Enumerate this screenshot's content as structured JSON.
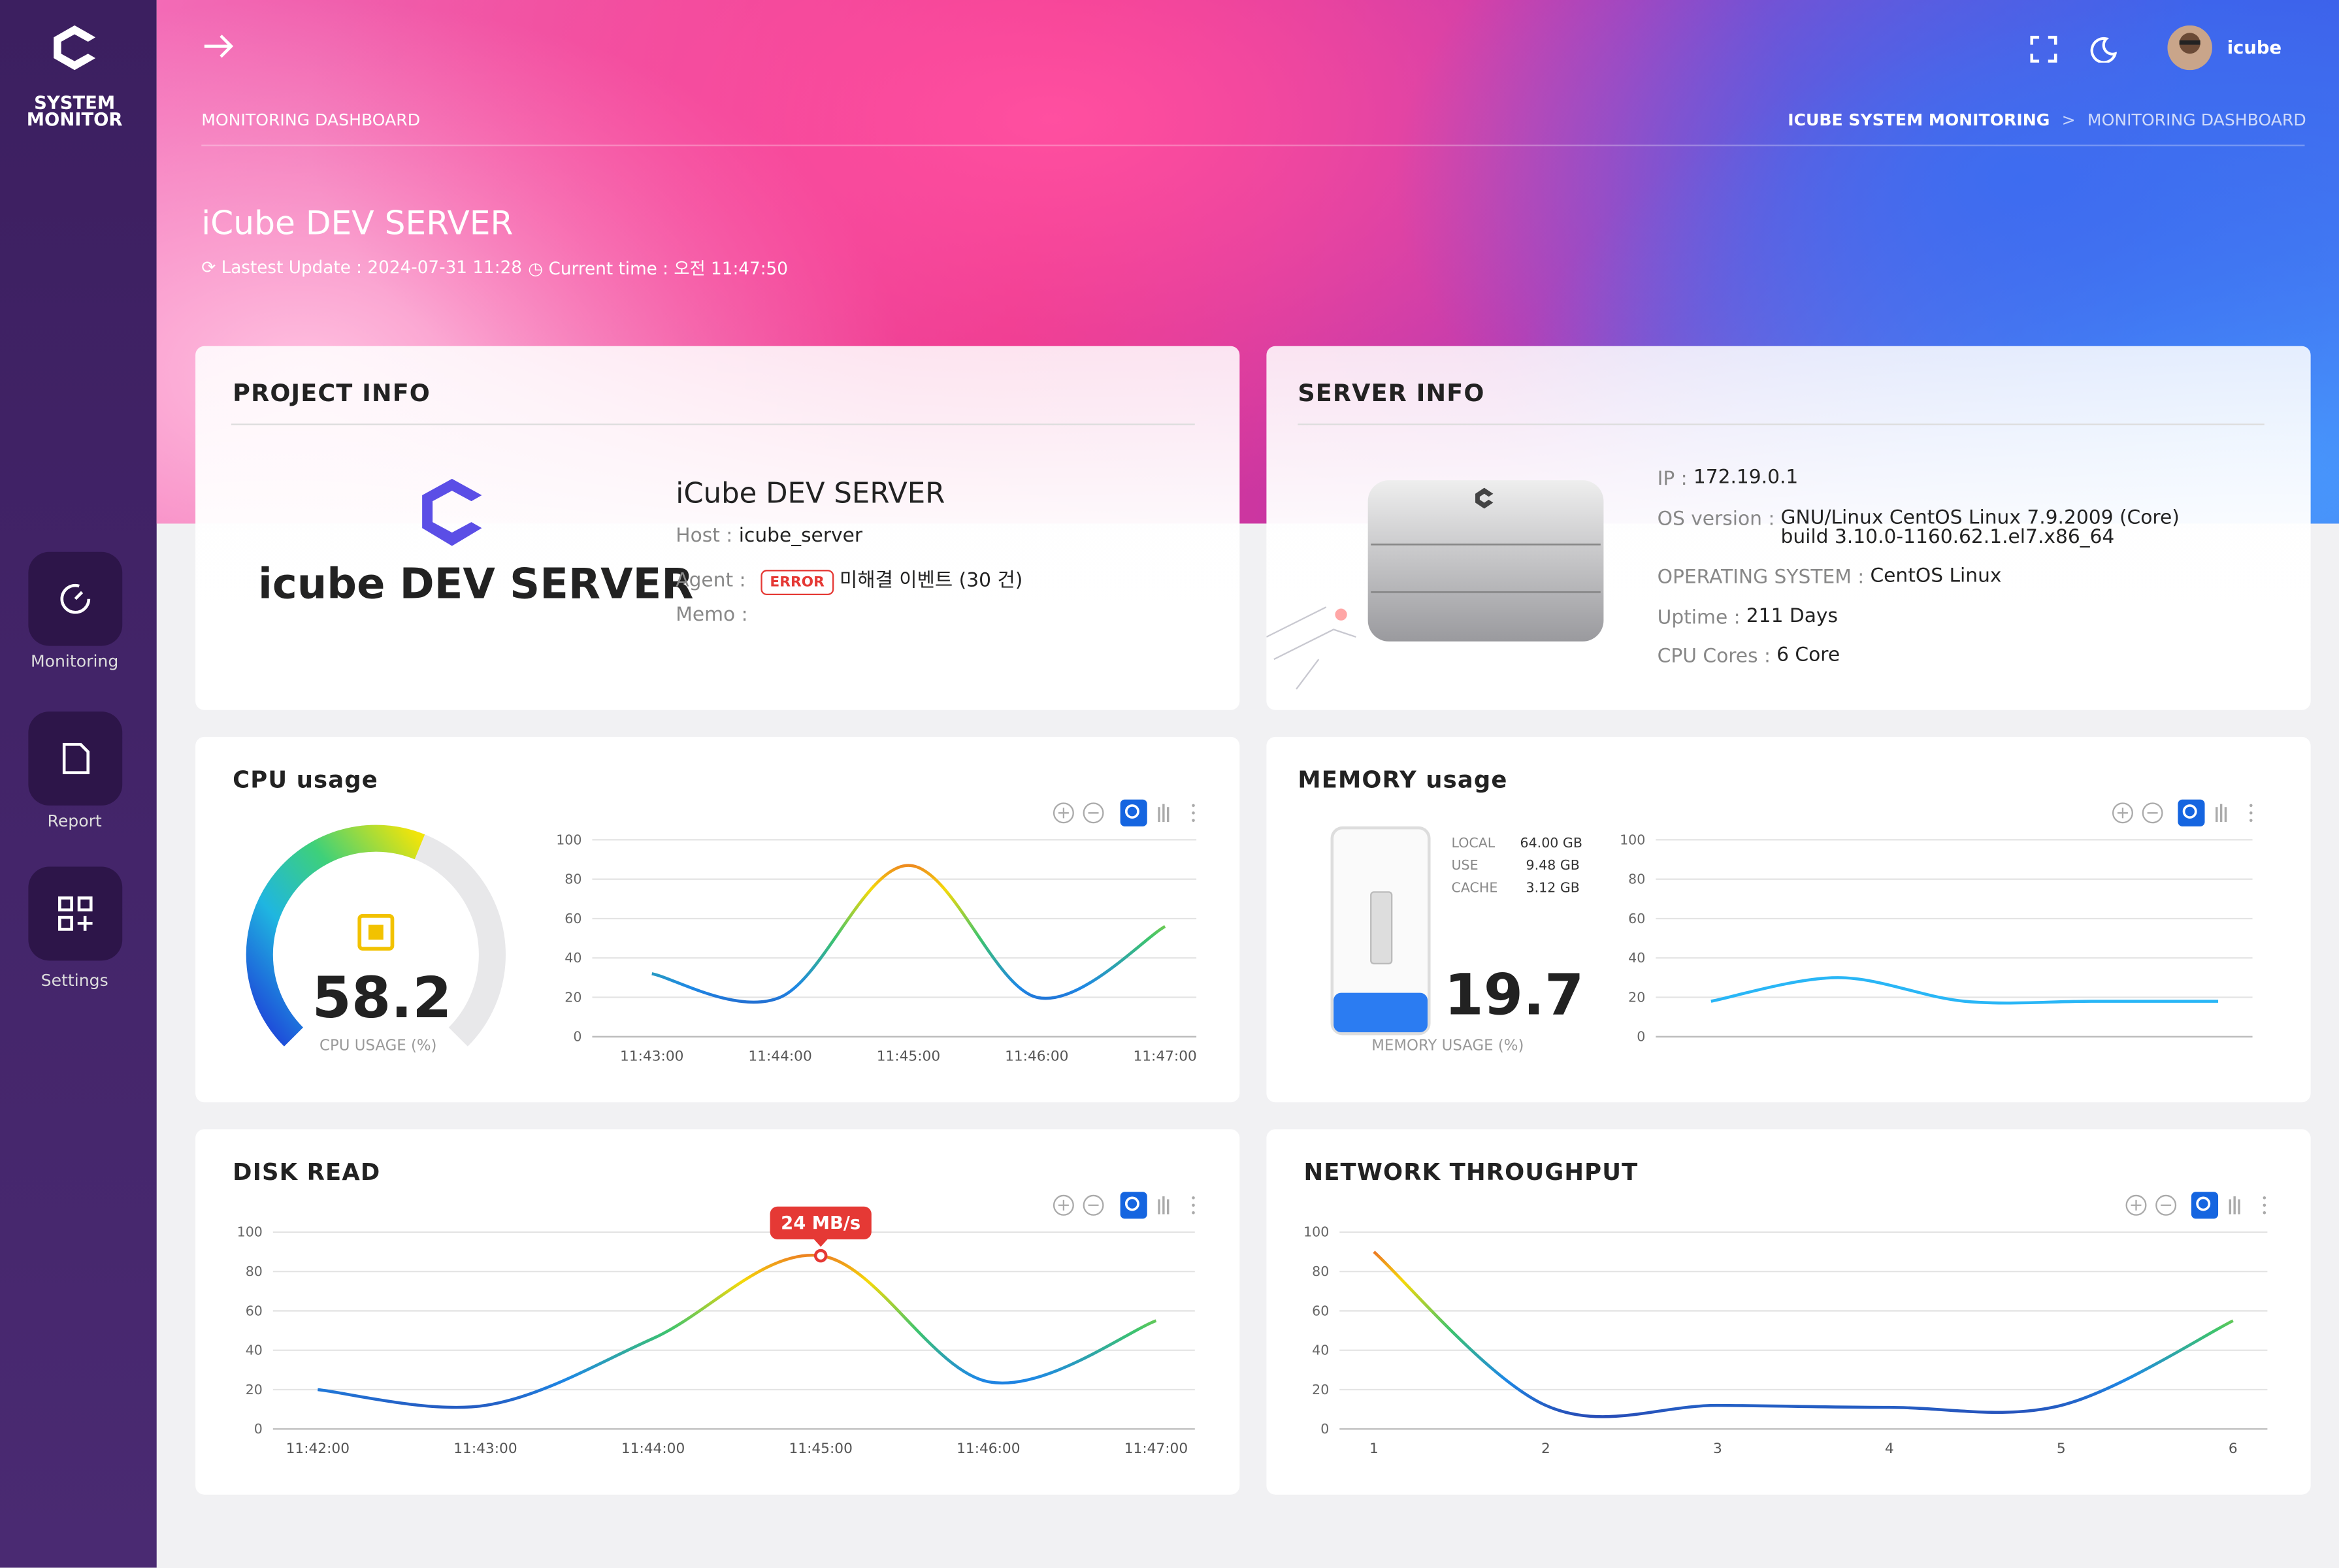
{
  "sidebar": {
    "brand": [
      "SYSTEM",
      "MONITOR"
    ],
    "nav": [
      "Monitoring",
      "Report",
      "Settings"
    ]
  },
  "topbar": {
    "user": "icube",
    "page": "MONITORING DASHBOARD",
    "breadcrumb": [
      "ICUBE SYSTEM MONITORING",
      "MONITORING DASHBOARD"
    ]
  },
  "hero": {
    "title": "iCube DEV SERVER",
    "last_update_label": "Lastest Update :",
    "last_update": "2024-07-31 11:28",
    "current_time_label": "Current time :",
    "current_time": "오전 11:47:50"
  },
  "project_info": {
    "title": "PROJECT INFO",
    "logo_text": "icube DEV SERVER",
    "name": "iCube DEV SERVER",
    "host_label": "Host :",
    "host": "icube_server",
    "agent_label": "Agent :",
    "agent_status": "ERROR",
    "agent_events": "미해결 이벤트 (30 건)",
    "memo_label": "Memo :"
  },
  "server_info": {
    "title": "SERVER INFO",
    "fields": [
      {
        "label": "IP :",
        "value": [
          "172.19.0.1"
        ]
      },
      {
        "label": "OS version :",
        "value": [
          "GNU/Linux CentOS Linux 7.9.2009 (Core)",
          "build 3.10.0-1160.62.1.el7.x86_64"
        ]
      },
      {
        "label": "OPERATING SYSTEM :",
        "value": [
          "CentOS Linux"
        ]
      },
      {
        "label": "Uptime :",
        "value": [
          "211 Days"
        ]
      },
      {
        "label": "CPU Cores :",
        "value": [
          "6 Core"
        ]
      }
    ]
  },
  "cpu_gauge": {
    "value": 58.2,
    "label": "CPU USAGE (%)"
  },
  "memory_gauge": {
    "value": 19.7,
    "label": "MEMORY USAGE (%)",
    "stats": [
      {
        "label": "LOCAL",
        "value": "64.00 GB"
      },
      {
        "label": "USE",
        "value": "9.48 GB"
      },
      {
        "label": "CACHE",
        "value": "3.12 GB"
      }
    ]
  },
  "chart_data": [
    {
      "type": "line",
      "title": "CPU usage",
      "categories": [
        "11:43:00",
        "11:44:00",
        "11:45:00",
        "11:46:00",
        "11:47:00"
      ],
      "values": [
        32,
        20,
        87,
        20,
        56
      ],
      "ylim": [
        0,
        100
      ],
      "yticks": [
        0,
        20,
        40,
        60,
        80,
        100
      ],
      "grid": true,
      "gradient": [
        "#e53935",
        "#f5d90a",
        "#3ec46d",
        "#1e88e5",
        "#2a3aa8"
      ]
    },
    {
      "type": "line",
      "title": "MEMORY usage",
      "categories": [
        null,
        null,
        null,
        null,
        null
      ],
      "values": [
        18,
        30,
        18,
        18,
        18
      ],
      "ylim": [
        0,
        100
      ],
      "yticks": [
        0,
        20,
        40,
        60,
        80,
        100
      ],
      "grid": true,
      "color": "#29b6f6"
    },
    {
      "type": "line",
      "title": "DISK READ",
      "categories": [
        "11:42:00",
        "11:43:00",
        "11:44:00",
        "11:45:00",
        "11:46:00",
        "11:47:00"
      ],
      "values": [
        20,
        12,
        46,
        88,
        24,
        55
      ],
      "ylim": [
        0,
        100
      ],
      "yticks": [
        0,
        20,
        40,
        60,
        80,
        100
      ],
      "grid": true,
      "gradient": [
        "#e53935",
        "#f5d90a",
        "#3ec46d",
        "#1e88e5",
        "#2a3aa8"
      ],
      "annotation": {
        "text": "24 MB/s",
        "x": "11:45:00",
        "color": "#e53935"
      }
    },
    {
      "type": "line",
      "title": "NETWORK THROUGHPUT",
      "x": [
        1,
        2,
        3,
        4,
        5,
        6
      ],
      "values": [
        90,
        12,
        12,
        11,
        12,
        55
      ],
      "xlim": [
        0.8,
        6.2
      ],
      "xticks": [
        1,
        2,
        3,
        4,
        5,
        6
      ],
      "ylim": [
        0,
        100
      ],
      "yticks": [
        0,
        20,
        40,
        60,
        80,
        100
      ],
      "grid": true,
      "gradient": [
        "#e53935",
        "#f5d90a",
        "#3ec46d",
        "#1e88e5",
        "#2a3aa8"
      ]
    }
  ]
}
